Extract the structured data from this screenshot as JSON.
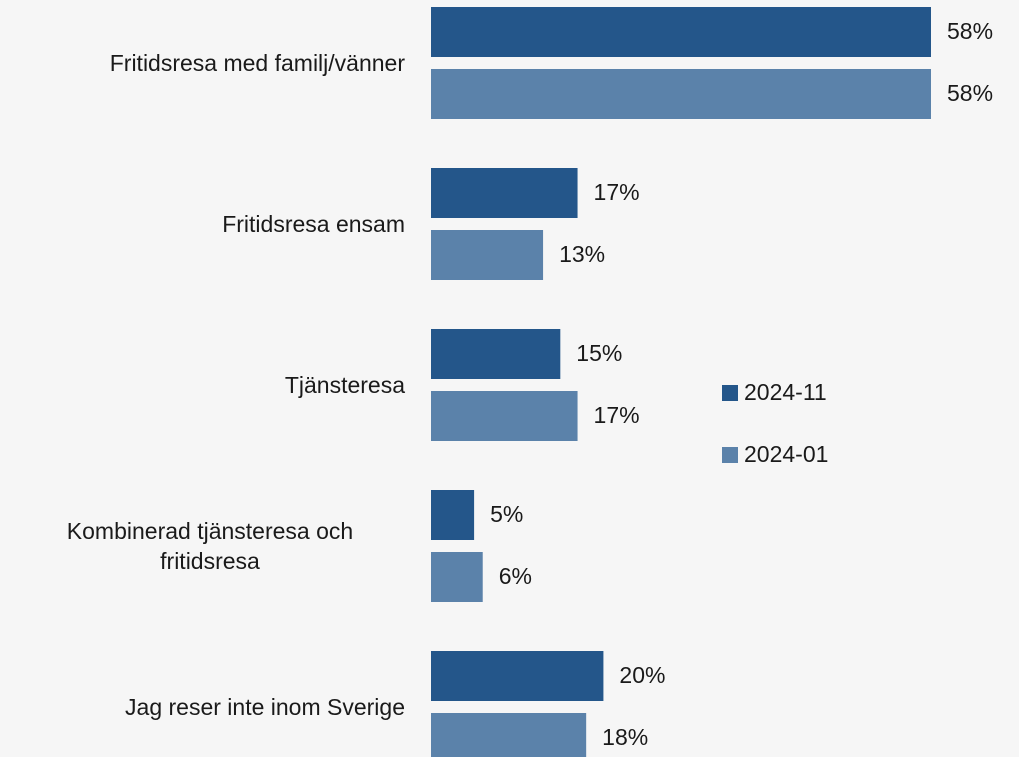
{
  "chart_data": {
    "type": "bar",
    "orientation": "horizontal",
    "categories": [
      "Fritidsresa med familj/vänner",
      "Fritidsresa ensam",
      "Tjänsteresa",
      "Kombinerad tjänsteresa och fritidsresa",
      "Jag reser inte inom Sverige"
    ],
    "series": [
      {
        "name": "2024-11",
        "color": "#24568a",
        "values": [
          58,
          17,
          15,
          5,
          20
        ],
        "value_labels": [
          "58%",
          "17%",
          "15%",
          "5%",
          "20%"
        ]
      },
      {
        "name": "2024-01",
        "color": "#5b82aa",
        "values": [
          58,
          13,
          17,
          6,
          18
        ],
        "value_labels": [
          "58%",
          "13%",
          "17%",
          "6%",
          "18%"
        ]
      }
    ]
  }
}
